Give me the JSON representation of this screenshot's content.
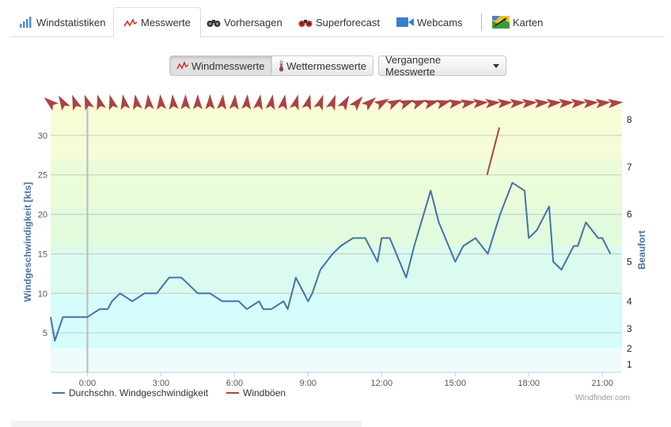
{
  "tabs": [
    {
      "label": "Windstatistiken",
      "icon": "bar-chart-icon",
      "active": false
    },
    {
      "label": "Messwerte",
      "icon": "wind-zigzag-icon",
      "active": true
    },
    {
      "label": "Vorhersagen",
      "icon": "binoculars-icon",
      "active": false
    },
    {
      "label": "Superforecast",
      "icon": "binoculars-red-icon",
      "active": false
    },
    {
      "label": "Webcams",
      "icon": "camera-icon",
      "active": false
    },
    {
      "label": "Karten",
      "icon": "map-icon",
      "active": false
    }
  ],
  "buttons": {
    "wind": "Windmesswerte",
    "weather": "Wettermesswerte",
    "past": "Vergangene Messwerte"
  },
  "colors": {
    "series": "#4572a7",
    "gusts": "#aa4643",
    "arrow": "#a94442",
    "ylabel": "#4572a7"
  },
  "chart_data": {
    "type": "line",
    "ylabel": "Windgeschwindigkeit [kts]",
    "y2label": "Beaufort",
    "xlim": [
      -1.5,
      21.8
    ],
    "ylim": [
      0,
      34
    ],
    "x_ticks": [
      {
        "x": 0,
        "label": "0:00"
      },
      {
        "x": 3,
        "label": "3:00"
      },
      {
        "x": 6,
        "label": "6:00"
      },
      {
        "x": 9,
        "label": "9:00"
      },
      {
        "x": 12,
        "label": "12:00"
      },
      {
        "x": 15,
        "label": "15:00"
      },
      {
        "x": 18,
        "label": "18:00"
      },
      {
        "x": 21,
        "label": "21:00"
      }
    ],
    "y_ticks": [
      5,
      10,
      15,
      20,
      25,
      30
    ],
    "beaufort_ticks": [
      {
        "label": "1",
        "kts": 1
      },
      {
        "label": "2",
        "kts": 3
      },
      {
        "label": "3",
        "kts": 5.5
      },
      {
        "label": "4",
        "kts": 9
      },
      {
        "label": "5",
        "kts": 14
      },
      {
        "label": "6",
        "kts": 20
      },
      {
        "label": "7",
        "kts": 26
      },
      {
        "label": "8",
        "kts": 32
      }
    ],
    "beaufort_bands": [
      {
        "from": 0,
        "to": 3,
        "color": "#eefcfd"
      },
      {
        "from": 3,
        "to": 10,
        "color": "#d6fcfb"
      },
      {
        "from": 10,
        "to": 16,
        "color": "#dafbee"
      },
      {
        "from": 16,
        "to": 21,
        "color": "#e2fbdc"
      },
      {
        "from": 21,
        "to": 27,
        "color": "#ebfcd8"
      },
      {
        "from": 27,
        "to": 33,
        "color": "#f6fcd6"
      },
      {
        "from": 33,
        "to": 34,
        "color": "#fcfbd8"
      }
    ],
    "marker_line_x": 0,
    "series": [
      {
        "name": "Durchschn. Windgeschwindigkeit",
        "x": [
          -1.5,
          -1.33,
          -1.0,
          -0.5,
          0.0,
          0.5,
          0.83,
          1.0,
          1.33,
          1.83,
          2.33,
          2.83,
          3.33,
          3.83,
          4.17,
          4.5,
          5.0,
          5.5,
          6.0,
          6.17,
          6.5,
          7.0,
          7.17,
          7.5,
          8.0,
          8.17,
          8.5,
          9.0,
          9.17,
          9.5,
          10.0,
          10.33,
          10.83,
          11.33,
          11.83,
          12.0,
          12.33,
          13.0,
          13.33,
          14.0,
          14.33,
          15.0,
          15.33,
          15.83,
          16.33,
          16.83,
          17.33,
          17.83,
          18.0,
          18.33,
          18.83,
          19.0,
          19.33,
          19.83,
          20.0,
          20.33,
          20.83,
          21.0,
          21.33
        ],
        "y": [
          7,
          4,
          7,
          7,
          7,
          8,
          8,
          9,
          10,
          9,
          10,
          10,
          12,
          12,
          11,
          10,
          10,
          9,
          9,
          9,
          8,
          9,
          8,
          8,
          9,
          8,
          12,
          9,
          10,
          13,
          15,
          16,
          17,
          17,
          14,
          17,
          17,
          12,
          16,
          23,
          19,
          14,
          16,
          17,
          15,
          20,
          24,
          23,
          17,
          18,
          21,
          14,
          13,
          16,
          16,
          19,
          17,
          17,
          15
        ]
      },
      {
        "name": "Windböen",
        "x": [
          16.3,
          16.8
        ],
        "y": [
          25,
          31
        ]
      }
    ],
    "direction_arrows": {
      "x": [
        -1.5,
        -1.0,
        -0.5,
        0.0,
        0.5,
        1.0,
        1.5,
        2.0,
        2.5,
        3.0,
        3.5,
        4.0,
        4.5,
        5.0,
        5.5,
        6.0,
        6.5,
        7.0,
        7.5,
        8.0,
        8.5,
        9.0,
        9.5,
        10.0,
        10.5,
        11.0,
        11.5,
        12.0,
        12.5,
        13.0,
        13.5,
        14.0,
        14.5,
        15.0,
        15.5,
        16.0,
        16.5,
        17.0,
        17.5,
        18.0,
        18.5,
        19.0,
        19.5,
        20.0,
        20.5,
        21.0,
        21.5
      ],
      "from_deg": [
        130,
        150,
        160,
        160,
        165,
        165,
        170,
        170,
        175,
        175,
        175,
        180,
        180,
        180,
        185,
        185,
        185,
        190,
        190,
        190,
        195,
        195,
        200,
        200,
        210,
        220,
        230,
        240,
        245,
        250,
        250,
        255,
        255,
        260,
        260,
        265,
        265,
        265,
        265,
        265,
        265,
        265,
        265,
        265,
        265,
        265,
        265
      ]
    },
    "credit": "Windfinder.com"
  }
}
